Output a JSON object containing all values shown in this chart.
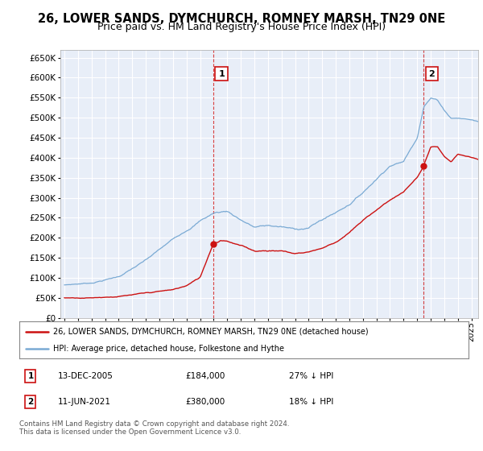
{
  "title": "26, LOWER SANDS, DYMCHURCH, ROMNEY MARSH, TN29 0NE",
  "subtitle": "Price paid vs. HM Land Registry's House Price Index (HPI)",
  "ylim": [
    0,
    670000
  ],
  "yticks": [
    0,
    50000,
    100000,
    150000,
    200000,
    250000,
    300000,
    350000,
    400000,
    450000,
    500000,
    550000,
    600000,
    650000
  ],
  "xlim_start": 1994.7,
  "xlim_end": 2025.5,
  "bg_color": "#ffffff",
  "plot_bg_color": "#e8eef8",
  "grid_color": "#ffffff",
  "hpi_color": "#7aaad4",
  "price_color": "#cc1111",
  "sale1_date": 2005.95,
  "sale1_price": 184000,
  "sale2_date": 2021.45,
  "sale2_price": 380000,
  "legend_line1": "26, LOWER SANDS, DYMCHURCH, ROMNEY MARSH, TN29 0NE (detached house)",
  "legend_line2": "HPI: Average price, detached house, Folkestone and Hythe",
  "footer": "Contains HM Land Registry data © Crown copyright and database right 2024.\nThis data is licensed under the Open Government Licence v3.0.",
  "title_fontsize": 10.5,
  "subtitle_fontsize": 9,
  "hpi_knots_x": [
    1995,
    1997,
    1999,
    2001,
    2003,
    2005,
    2006,
    2007,
    2008,
    2009,
    2010,
    2011,
    2012,
    2013,
    2014,
    2015,
    2016,
    2017,
    2018,
    2019,
    2020,
    2021,
    2021.5,
    2022,
    2022.5,
    2023,
    2023.5,
    2024,
    2025,
    2025.5
  ],
  "hpi_knots_y": [
    82000,
    88000,
    105000,
    145000,
    195000,
    245000,
    265000,
    270000,
    250000,
    232000,
    235000,
    232000,
    225000,
    230000,
    250000,
    268000,
    290000,
    320000,
    355000,
    390000,
    400000,
    460000,
    540000,
    560000,
    555000,
    530000,
    510000,
    510000,
    505000,
    500000
  ],
  "price_knots_x": [
    1995,
    1997,
    1999,
    2001,
    2003,
    2004,
    2005,
    2005.95,
    2006.5,
    2007,
    2008,
    2009,
    2010,
    2011,
    2012,
    2013,
    2014,
    2015,
    2016,
    2017,
    2018,
    2019,
    2020,
    2021,
    2021.44,
    2021.6,
    2022,
    2022.5,
    2023,
    2023.5,
    2024,
    2025,
    2025.5
  ],
  "price_knots_y": [
    50000,
    52000,
    57000,
    63000,
    70000,
    80000,
    100000,
    184000,
    195000,
    195000,
    183000,
    170000,
    172000,
    172000,
    165000,
    170000,
    180000,
    195000,
    220000,
    248000,
    275000,
    300000,
    320000,
    355000,
    380000,
    395000,
    430000,
    430000,
    405000,
    390000,
    410000,
    400000,
    395000
  ]
}
